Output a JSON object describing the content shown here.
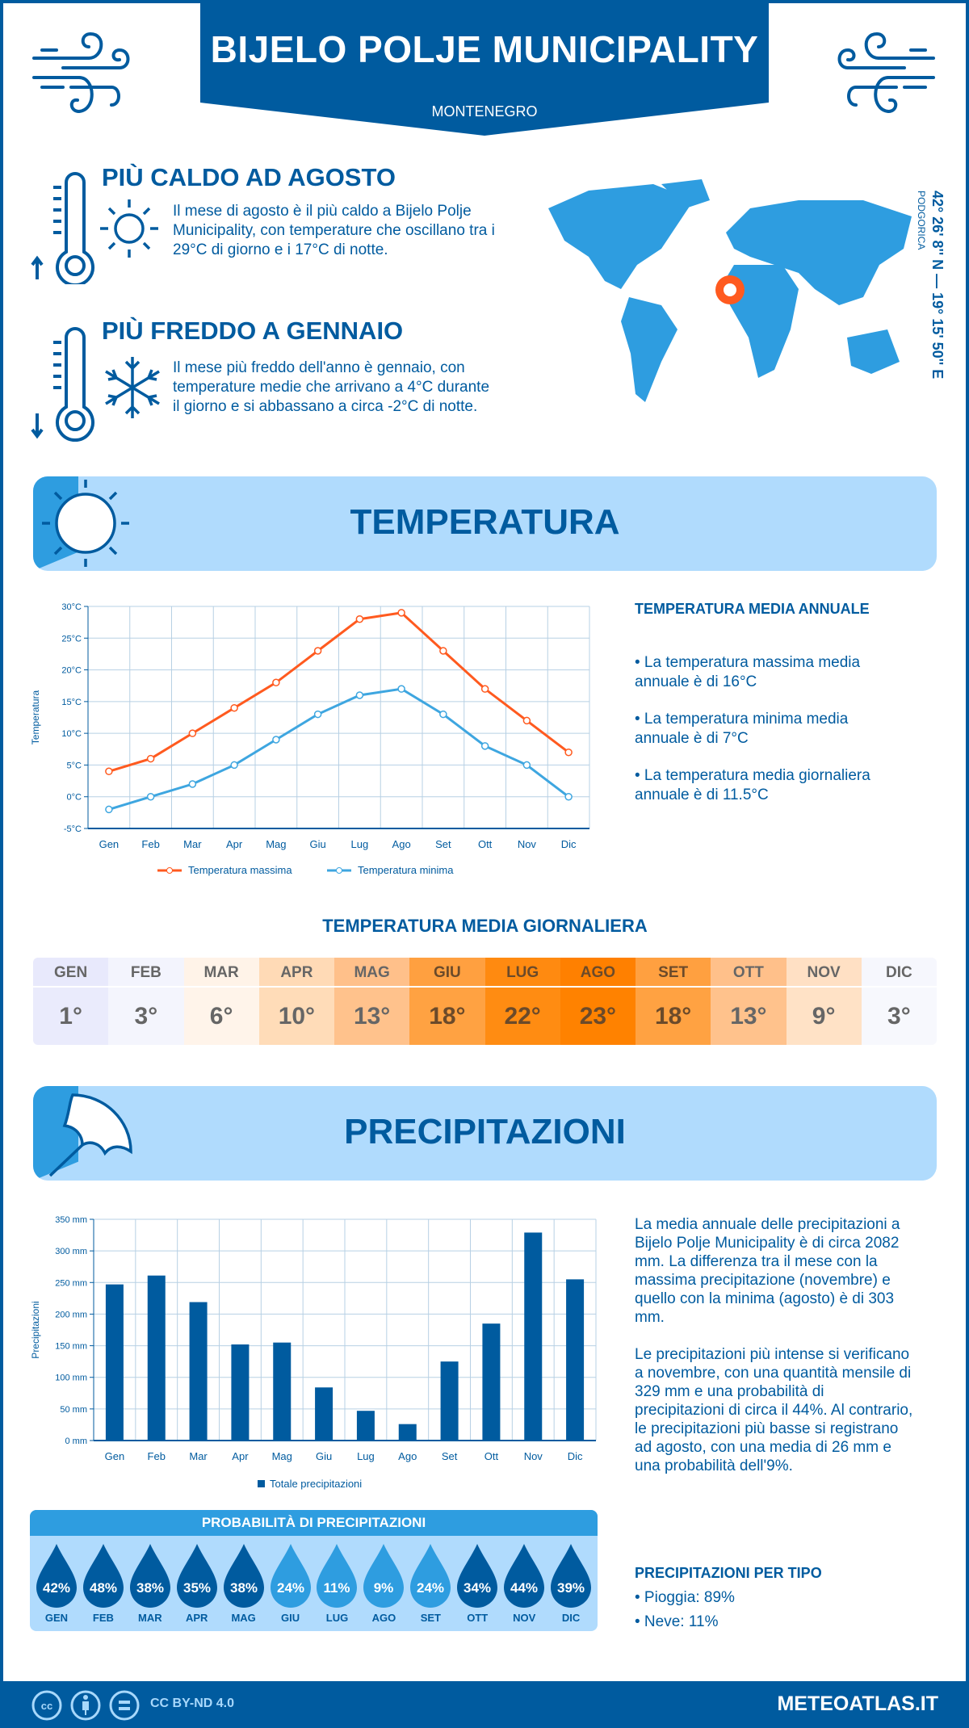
{
  "header": {
    "title": "BIJELO POLJE MUNICIPALITY",
    "country": "MONTENEGRO"
  },
  "colors": {
    "primary": "#005b9f",
    "accent": "#2e9de0",
    "banner": "#b0dbfd",
    "max_line": "#ff5a1f",
    "min_line": "#3ea6e0"
  },
  "warm": {
    "title": "PIÙ CALDO AD AGOSTO",
    "text": "Il mese di agosto è il più caldo a Bijelo Polje Municipality, con temperature che oscillano tra i 29°C di giorno e i 17°C di notte.",
    "icons": [
      "thermometer-up-icon",
      "sun-icon"
    ]
  },
  "cold": {
    "title": "PIÙ FREDDO A GENNAIO",
    "text": "Il mese più freddo dell'anno è gennaio, con temperature medie che arrivano a 4°C durante il giorno e si abbassano a circa -2°C di notte.",
    "icons": [
      "thermometer-down-icon",
      "snowflake-icon"
    ]
  },
  "map": {
    "coords": "42° 26' 8'' N — 19° 15' 50'' E",
    "city": "PODGORICA"
  },
  "temp_section": {
    "title": "TEMPERATURA",
    "annual_title": "TEMPERATURA MEDIA ANNUALE",
    "bullets": [
      "• La temperatura massima media annuale è di 16°C",
      "• La temperatura minima media annuale è di 7°C",
      "• La temperatura media giornaliera annuale è di 11.5°C"
    ]
  },
  "daily": {
    "title": "TEMPERATURA MEDIA GIORNALIERA",
    "months": [
      "GEN",
      "FEB",
      "MAR",
      "APR",
      "MAG",
      "GIU",
      "LUG",
      "AGO",
      "SET",
      "OTT",
      "NOV",
      "DIC"
    ],
    "values": [
      "1°",
      "3°",
      "6°",
      "10°",
      "13°",
      "18°",
      "22°",
      "23°",
      "18°",
      "13°",
      "9°",
      "3°"
    ],
    "header_colors": [
      "#e8e9fc",
      "#f3f4fd",
      "#fff3e8",
      "#ffdab6",
      "#ffc08a",
      "#ffa040",
      "#ff8a10",
      "#ff8000",
      "#ffa040",
      "#ffc08a",
      "#ffe0c4",
      "#f6f7fd"
    ],
    "value_colors": [
      "#eaebfc",
      "#f4f5fd",
      "#fff4ea",
      "#ffdcb8",
      "#ffc28c",
      "#ffa242",
      "#ff8c12",
      "#ff8200",
      "#ffa242",
      "#ffc28c",
      "#ffe2c6",
      "#f7f8fd"
    ]
  },
  "precip_section": {
    "title": "PRECIPITAZIONI",
    "para1": "La media annuale delle precipitazioni a Bijelo Polje Municipality è di circa 2082 mm. La differenza tra il mese con la massima precipitazione (novembre) e quello con la minima (agosto) è di 303 mm.",
    "para2": "Le precipitazioni più intense si verificano a novembre, con una quantità mensile di 329 mm e una probabilità di precipitazioni di circa il 44%. Al contrario, le precipitazioni più basse si registrano ad agosto, con una media di 26 mm e una probabilità dell'9%.",
    "type_title": "PRECIPITAZIONI PER TIPO",
    "types": [
      "• Pioggia: 89%",
      "• Neve: 11%"
    ]
  },
  "probability": {
    "title": "PROBABILITÀ DI PRECIPITAZIONI",
    "months": [
      "GEN",
      "FEB",
      "MAR",
      "APR",
      "MAG",
      "GIU",
      "LUG",
      "AGO",
      "SET",
      "OTT",
      "NOV",
      "DIC"
    ],
    "values": [
      "42%",
      "48%",
      "38%",
      "35%",
      "38%",
      "24%",
      "11%",
      "9%",
      "24%",
      "34%",
      "44%",
      "39%"
    ]
  },
  "footer": {
    "license": "CC BY-ND 4.0",
    "brand": "METEOATLAS.IT"
  },
  "chart_data": [
    {
      "type": "line",
      "ylabel": "Temperatura",
      "ylim": [
        -5,
        30
      ],
      "yticks": [
        "-5°C",
        "0°C",
        "5°C",
        "10°C",
        "15°C",
        "20°C",
        "25°C",
        "30°C"
      ],
      "grid": true,
      "legend": "bottom",
      "categories": [
        "Gen",
        "Feb",
        "Mar",
        "Apr",
        "Mag",
        "Giu",
        "Lug",
        "Ago",
        "Set",
        "Ott",
        "Nov",
        "Dic"
      ],
      "series": [
        {
          "name": "Temperatura massima",
          "values": [
            4,
            6,
            10,
            14,
            18,
            23,
            28,
            29,
            23,
            17,
            12,
            7
          ]
        },
        {
          "name": "Temperatura minima",
          "values": [
            -2,
            0,
            2,
            5,
            9,
            13,
            16,
            17,
            13,
            8,
            5,
            0
          ]
        }
      ]
    },
    {
      "type": "bar",
      "ylabel": "Precipitazioni",
      "ylim": [
        0,
        350
      ],
      "yticks": [
        "0 mm",
        "50 mm",
        "100 mm",
        "150 mm",
        "200 mm",
        "250 mm",
        "300 mm",
        "350 mm"
      ],
      "grid": true,
      "legend": "bottom",
      "categories": [
        "Gen",
        "Feb",
        "Mar",
        "Apr",
        "Mag",
        "Giu",
        "Lug",
        "Ago",
        "Set",
        "Ott",
        "Nov",
        "Dic"
      ],
      "series": [
        {
          "name": "Totale precipitazioni",
          "values": [
            247,
            261,
            219,
            152,
            155,
            84,
            47,
            26,
            125,
            185,
            329,
            255
          ]
        }
      ]
    }
  ]
}
